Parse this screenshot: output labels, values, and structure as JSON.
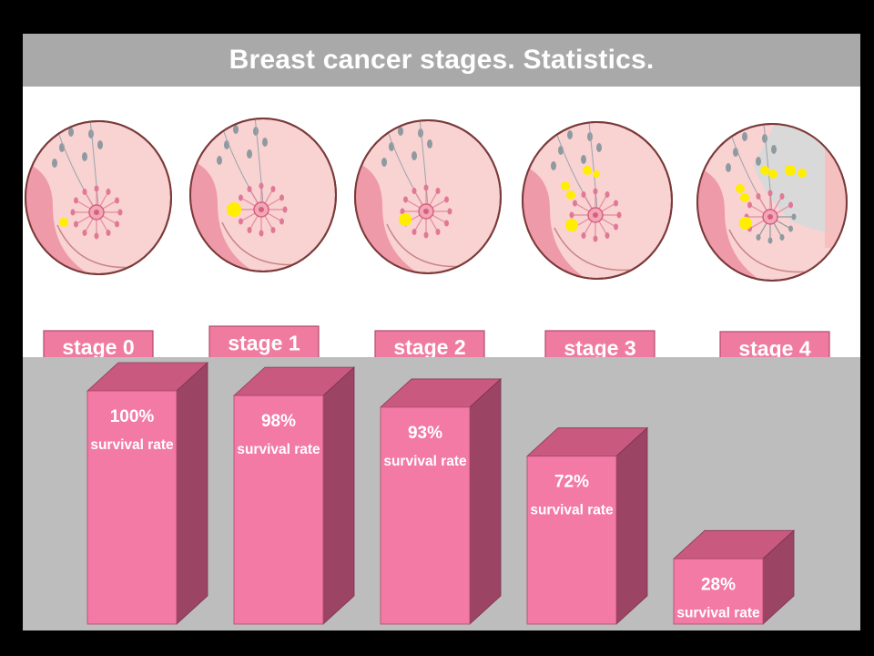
{
  "title": "Breast cancer stages. Statistics.",
  "stages": [
    {
      "label": "stage 0",
      "tumor_count": 1
    },
    {
      "label": "stage 1",
      "tumor_count": 1
    },
    {
      "label": "stage 2",
      "tumor_count": 1
    },
    {
      "label": "stage 3",
      "tumor_count": 4
    },
    {
      "label": "stage 4",
      "tumor_count": 7
    }
  ],
  "colors": {
    "background": "#000000",
    "title_bar": "#a9a9a9",
    "chart_panel": "#bdbdbd",
    "bar_front": "#f27aa4",
    "bar_top": "#c9597f",
    "bar_side": "#9c4463",
    "label_box": "#f07ba0",
    "breast_skin": "#f9d2d2",
    "tumor": "#ffee00"
  },
  "chart_data": {
    "type": "bar",
    "style": "3d-column",
    "categories": [
      "stage 0",
      "stage 1",
      "stage 2",
      "stage 3",
      "stage 4"
    ],
    "values": [
      100,
      98,
      93,
      72,
      28
    ],
    "value_labels": [
      "100%",
      "98%",
      "93%",
      "72%",
      "28%"
    ],
    "bar_caption": "survival rate",
    "ylim": [
      0,
      100
    ],
    "grid": false,
    "legend": "none"
  }
}
